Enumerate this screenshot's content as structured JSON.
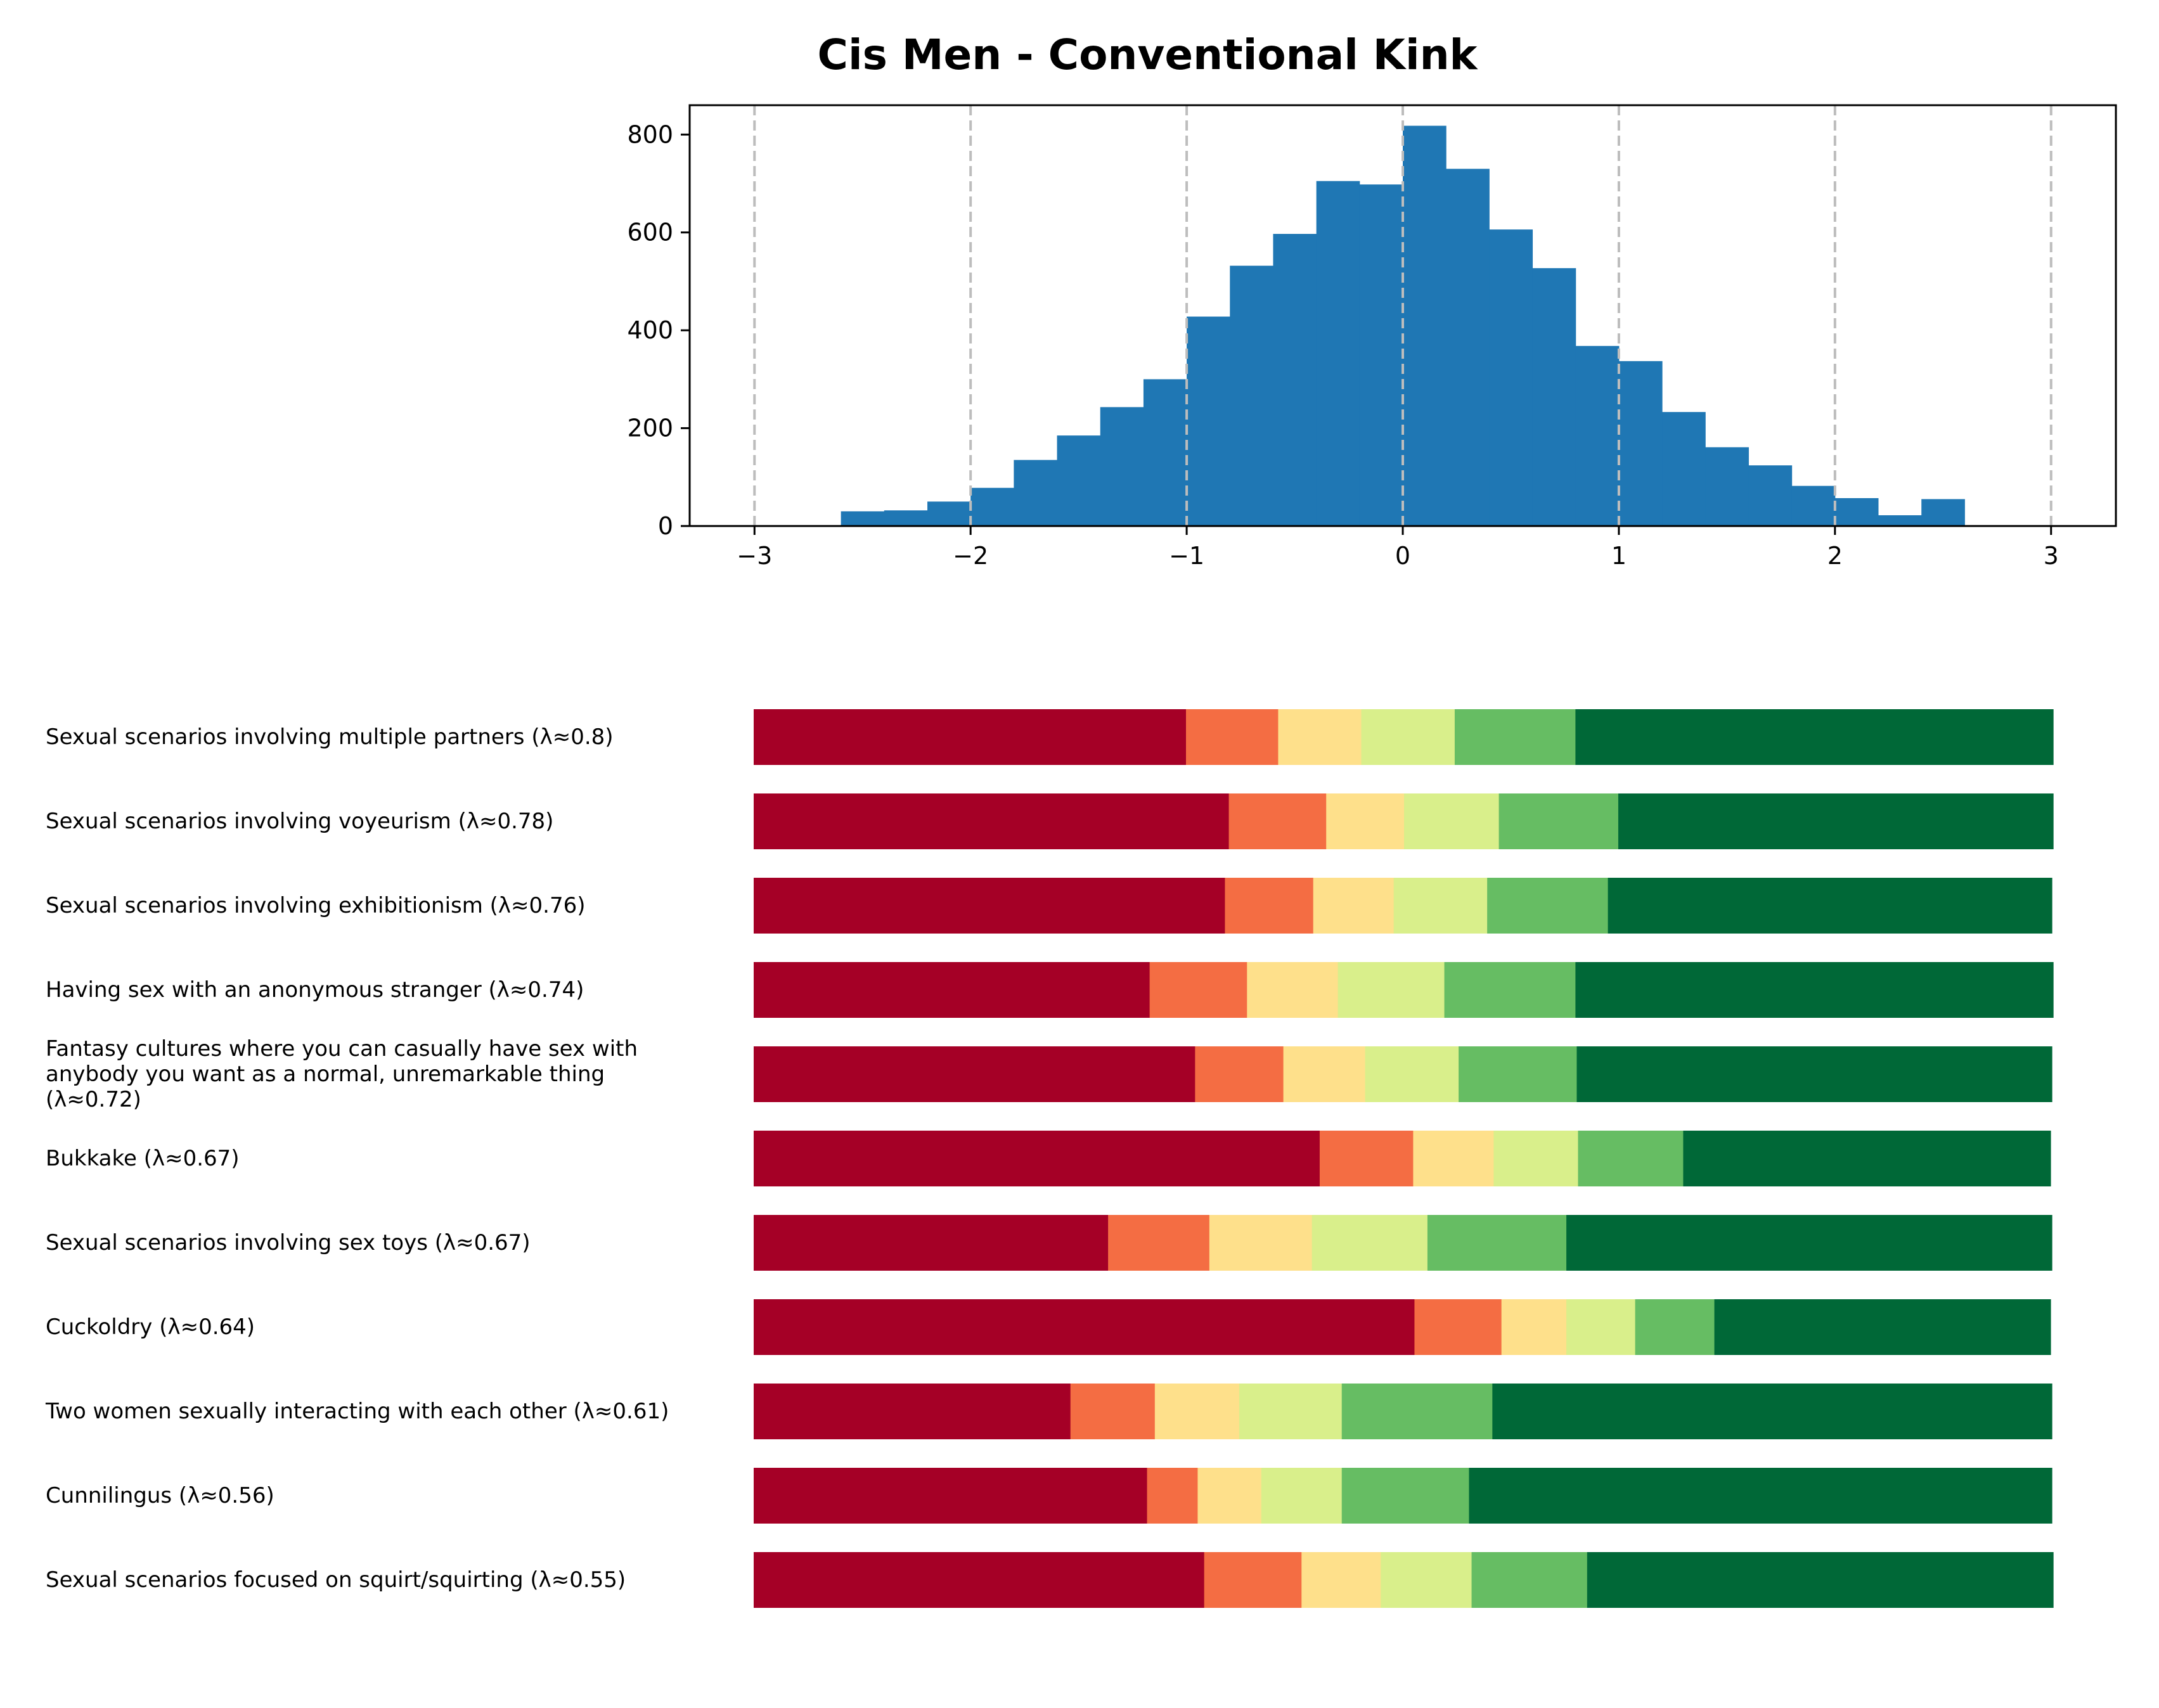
{
  "chart_data": [
    {
      "type": "bar",
      "subtype": "histogram",
      "title": "Cis Men - Conventional Kink",
      "xlabel": "",
      "ylabel": "",
      "xlim": [
        -3.3,
        3.3
      ],
      "ylim": [
        0,
        860
      ],
      "xticks": [
        -3,
        -2,
        -1,
        0,
        1,
        2,
        3
      ],
      "xtick_labels": [
        "−3",
        "−2",
        "−1",
        "0",
        "1",
        "2",
        "3"
      ],
      "yticks": [
        0,
        200,
        400,
        600,
        800
      ],
      "ytick_labels": [
        "0",
        "200",
        "400",
        "600",
        "800"
      ],
      "vlines": [
        -3,
        -2,
        -1,
        0,
        1,
        2,
        3
      ],
      "bin_width": 0.2,
      "bin_starts": [
        -2.6,
        -2.4,
        -2.2,
        -2.0,
        -1.8,
        -1.6,
        -1.4,
        -1.2,
        -1.0,
        -0.8,
        -0.6,
        -0.4,
        -0.2,
        0.0,
        0.2,
        0.4,
        0.6,
        0.8,
        1.0,
        1.2,
        1.4,
        1.6,
        1.8,
        2.0,
        2.2,
        2.4
      ],
      "values": [
        30,
        32,
        50,
        78,
        135,
        185,
        243,
        300,
        428,
        532,
        597,
        705,
        698,
        818,
        730,
        606,
        527,
        368,
        337,
        233,
        161,
        124,
        82,
        57,
        22,
        55
      ],
      "color": "#1f77b4",
      "grid": false
    },
    {
      "type": "bar",
      "subtype": "stacked-horizontal-100",
      "categories": [
        "Sexual scenarios involving multiple partners (λ≈0.8)",
        "Sexual scenarios involving voyeurism (λ≈0.78)",
        "Sexual scenarios involving exhibitionism (λ≈0.76)",
        "Having sex with an anonymous stranger (λ≈0.74)",
        "Fantasy cultures where you can casually have sex with anybody you want as a normal, unremarkable thing (λ≈0.72)",
        "Bukkake (λ≈0.67)",
        "Sexual scenarios involving sex toys (λ≈0.67)",
        "Cuckoldry (λ≈0.64)",
        "Two women sexually interacting with each other (λ≈0.61)",
        "Cunnilingus (λ≈0.56)",
        "Sexual scenarios focused on squirt/squirting (λ≈0.55)"
      ],
      "category_lines": [
        [
          "Sexual scenarios involving multiple partners (λ≈0.8)"
        ],
        [
          "Sexual scenarios involving voyeurism (λ≈0.78)"
        ],
        [
          "Sexual scenarios involving exhibitionism (λ≈0.76)"
        ],
        [
          "Having sex with an anonymous stranger (λ≈0.74)"
        ],
        [
          "Fantasy cultures where you can casually have sex with",
          "anybody you want as a normal, unremarkable thing",
          "(λ≈0.72)"
        ],
        [
          "Bukkake (λ≈0.67)"
        ],
        [
          "Sexual scenarios involving sex toys (λ≈0.67)"
        ],
        [
          "Cuckoldry (λ≈0.64)"
        ],
        [
          "Two women sexually interacting with each other (λ≈0.61)"
        ],
        [
          "Cunnilingus (λ≈0.56)"
        ],
        [
          "Sexual scenarios focused on squirt/squirting (λ≈0.55)"
        ]
      ],
      "segment_colors": [
        "#a50026",
        "#f46d43",
        "#fee08b",
        "#d9ef8b",
        "#66bd63",
        "#006837"
      ],
      "series": [
        {
          "name": "level-1",
          "values": [
            0.333,
            0.366,
            0.363,
            0.305,
            0.34,
            0.436,
            0.273,
            0.509,
            0.244,
            0.303,
            0.347
          ]
        },
        {
          "name": "level-2",
          "values": [
            0.071,
            0.075,
            0.068,
            0.075,
            0.068,
            0.072,
            0.078,
            0.067,
            0.065,
            0.039,
            0.075
          ]
        },
        {
          "name": "level-3",
          "values": [
            0.064,
            0.06,
            0.062,
            0.07,
            0.063,
            0.062,
            0.079,
            0.05,
            0.065,
            0.049,
            0.061
          ]
        },
        {
          "name": "level-4",
          "values": [
            0.072,
            0.073,
            0.072,
            0.082,
            0.072,
            0.065,
            0.089,
            0.053,
            0.079,
            0.062,
            0.07
          ]
        },
        {
          "name": "level-5",
          "values": [
            0.093,
            0.092,
            0.093,
            0.101,
            0.091,
            0.081,
            0.107,
            0.061,
            0.116,
            0.098,
            0.089
          ]
        },
        {
          "name": "level-6",
          "values": [
            0.368,
            0.335,
            0.342,
            0.368,
            0.366,
            0.283,
            0.374,
            0.259,
            0.431,
            0.449,
            0.359
          ]
        }
      ],
      "xlim": [
        0,
        1
      ],
      "axes_visible": false
    }
  ]
}
